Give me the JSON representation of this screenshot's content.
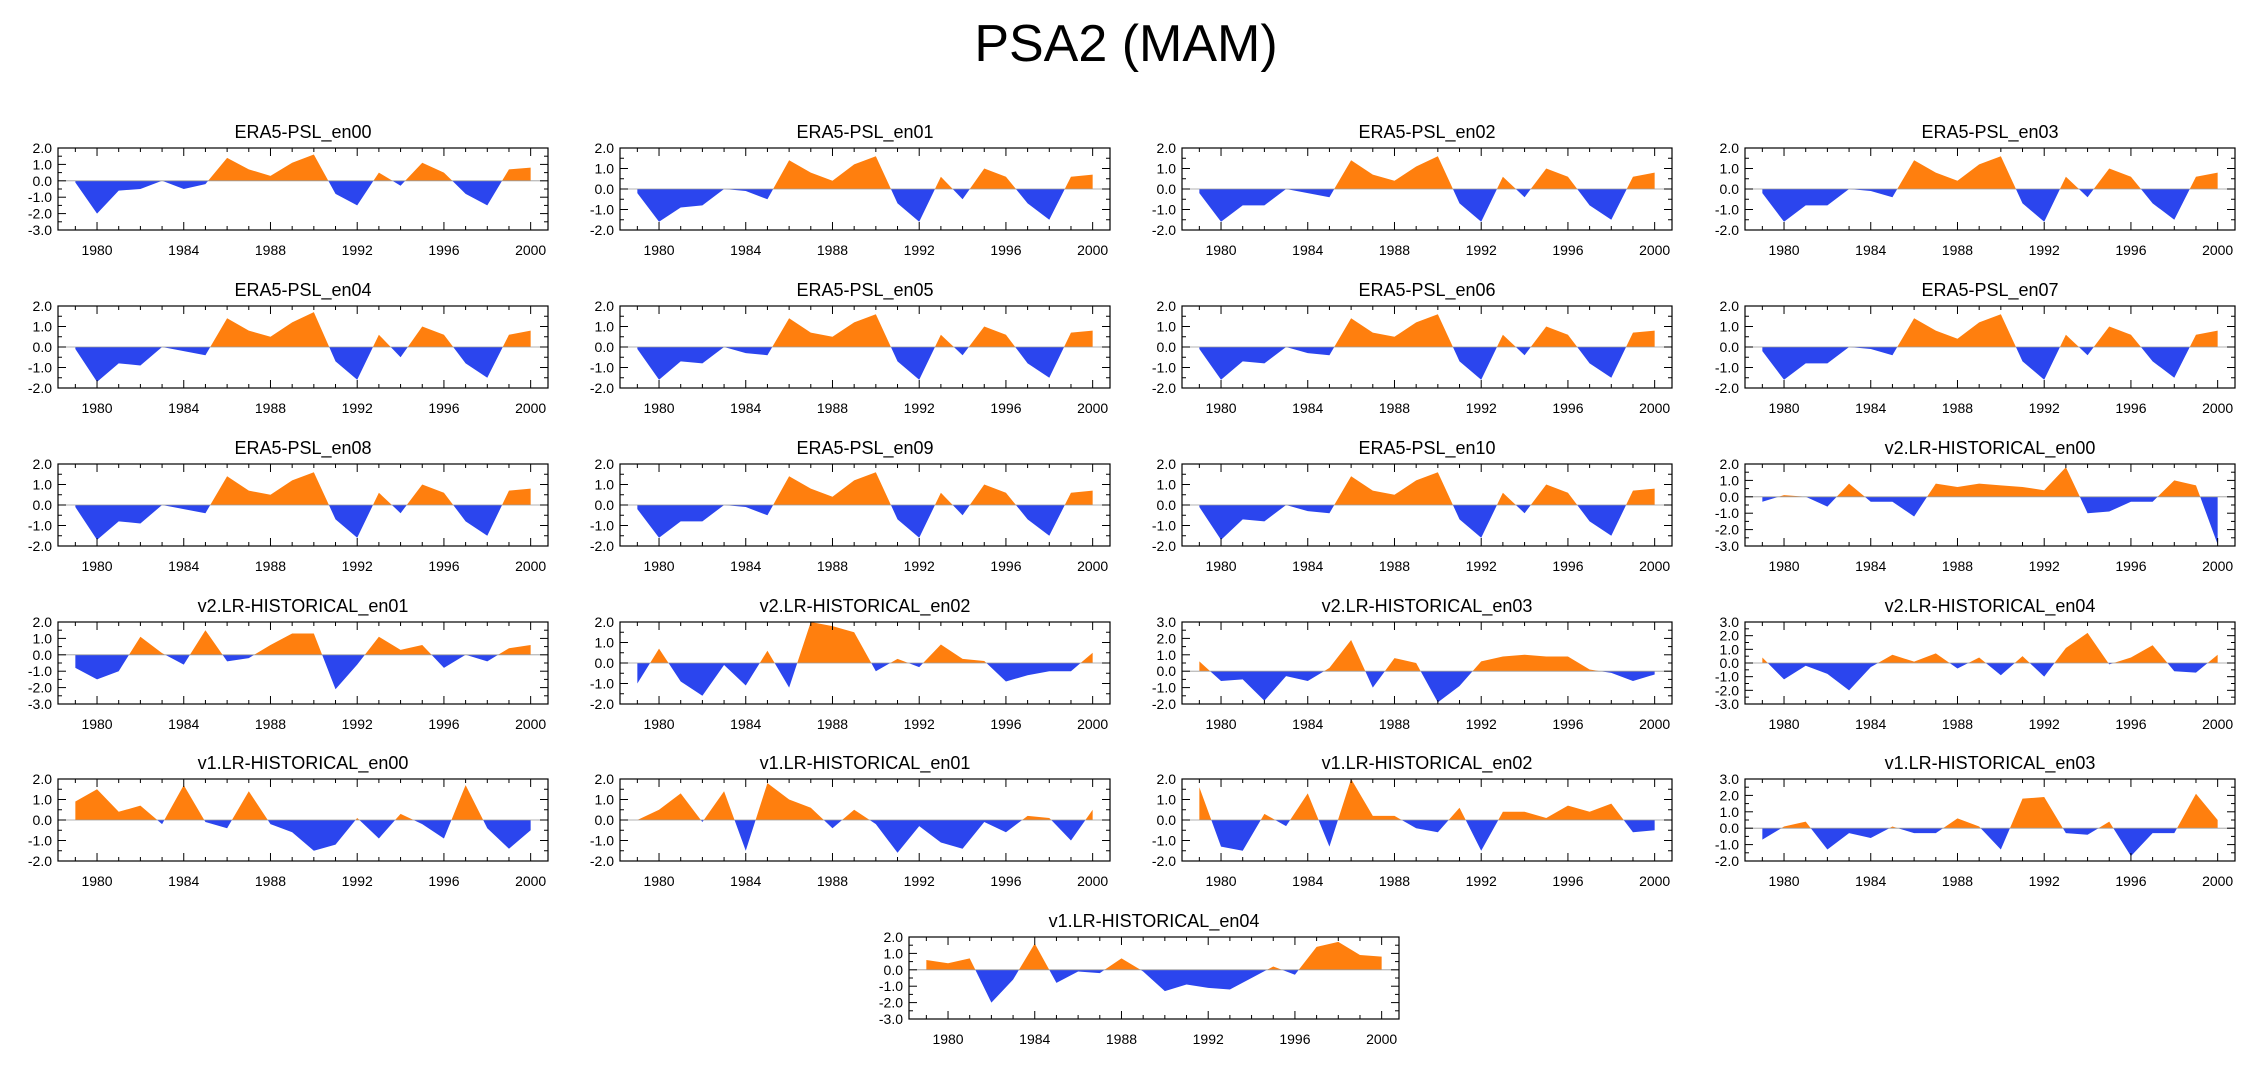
{
  "figure": {
    "title": "PSA2 (MAM)",
    "colors": {
      "positive": "#ff7f0e",
      "negative": "#2b45ee",
      "axis": "#000000"
    }
  },
  "chart_data": [
    {
      "type": "area",
      "title": "ERA5-PSL_en00",
      "x_start": 1979,
      "xlim": [
        1978.2,
        2000.8
      ],
      "xticks": [
        1980,
        1984,
        1988,
        1992,
        1996,
        2000
      ],
      "ylim": [
        -3,
        2
      ],
      "ytick_labels": [
        "2.0",
        "1.0",
        "0.0",
        "-1.0",
        "-2.0",
        "-3.0"
      ],
      "values": [
        -0.1,
        -2.0,
        -0.6,
        -0.5,
        0.0,
        -0.5,
        -0.2,
        1.4,
        0.7,
        0.3,
        1.1,
        1.6,
        -0.8,
        -1.5,
        0.5,
        -0.3,
        1.1,
        0.5,
        -0.8,
        -1.5,
        0.7,
        0.8
      ]
    },
    {
      "type": "area",
      "title": "ERA5-PSL_en01",
      "x_start": 1979,
      "xlim": [
        1978.2,
        2000.8
      ],
      "xticks": [
        1980,
        1984,
        1988,
        1992,
        1996,
        2000
      ],
      "ylim": [
        -2,
        2
      ],
      "ytick_labels": [
        "2.0",
        "1.0",
        "0.0",
        "-1.0",
        "-2.0"
      ],
      "values": [
        -0.2,
        -1.6,
        -0.9,
        -0.8,
        0.0,
        -0.1,
        -0.5,
        1.4,
        0.8,
        0.4,
        1.2,
        1.6,
        -0.7,
        -1.6,
        0.6,
        -0.5,
        1.0,
        0.6,
        -0.7,
        -1.5,
        0.6,
        0.7
      ]
    },
    {
      "type": "area",
      "title": "ERA5-PSL_en02",
      "x_start": 1979,
      "xlim": [
        1978.2,
        2000.8
      ],
      "xticks": [
        1980,
        1984,
        1988,
        1992,
        1996,
        2000
      ],
      "ylim": [
        -2,
        2
      ],
      "ytick_labels": [
        "2.0",
        "1.0",
        "0.0",
        "-1.0",
        "-2.0"
      ],
      "values": [
        -0.2,
        -1.6,
        -0.8,
        -0.8,
        0.0,
        -0.2,
        -0.4,
        1.4,
        0.7,
        0.4,
        1.1,
        1.6,
        -0.7,
        -1.6,
        0.6,
        -0.4,
        1.0,
        0.6,
        -0.8,
        -1.5,
        0.6,
        0.8
      ]
    },
    {
      "type": "area",
      "title": "ERA5-PSL_en03",
      "x_start": 1979,
      "xlim": [
        1978.2,
        2000.8
      ],
      "xticks": [
        1980,
        1984,
        1988,
        1992,
        1996,
        2000
      ],
      "ylim": [
        -2,
        2
      ],
      "ytick_labels": [
        "2.0",
        "1.0",
        "0.0",
        "-1.0",
        "-2.0"
      ],
      "values": [
        -0.2,
        -1.6,
        -0.8,
        -0.8,
        0.0,
        -0.1,
        -0.4,
        1.4,
        0.8,
        0.4,
        1.2,
        1.6,
        -0.7,
        -1.6,
        0.6,
        -0.4,
        1.0,
        0.6,
        -0.7,
        -1.5,
        0.6,
        0.8
      ]
    },
    {
      "type": "area",
      "title": "ERA5-PSL_en04",
      "x_start": 1979,
      "xlim": [
        1978.2,
        2000.8
      ],
      "xticks": [
        1980,
        1984,
        1988,
        1992,
        1996,
        2000
      ],
      "ylim": [
        -2,
        2
      ],
      "ytick_labels": [
        "2.0",
        "1.0",
        "0.0",
        "-1.0",
        "-2.0"
      ],
      "values": [
        -0.1,
        -1.7,
        -0.8,
        -0.9,
        0.0,
        -0.2,
        -0.4,
        1.4,
        0.8,
        0.5,
        1.2,
        1.7,
        -0.7,
        -1.6,
        0.6,
        -0.5,
        1.0,
        0.6,
        -0.8,
        -1.5,
        0.6,
        0.8
      ]
    },
    {
      "type": "area",
      "title": "ERA5-PSL_en05",
      "x_start": 1979,
      "xlim": [
        1978.2,
        2000.8
      ],
      "xticks": [
        1980,
        1984,
        1988,
        1992,
        1996,
        2000
      ],
      "ylim": [
        -2,
        2
      ],
      "ytick_labels": [
        "2.0",
        "1.0",
        "0.0",
        "-1.0",
        "-2.0"
      ],
      "values": [
        -0.1,
        -1.6,
        -0.7,
        -0.8,
        0.0,
        -0.3,
        -0.4,
        1.4,
        0.7,
        0.5,
        1.2,
        1.6,
        -0.7,
        -1.6,
        0.6,
        -0.4,
        1.0,
        0.6,
        -0.8,
        -1.5,
        0.7,
        0.8
      ]
    },
    {
      "type": "area",
      "title": "ERA5-PSL_en06",
      "x_start": 1979,
      "xlim": [
        1978.2,
        2000.8
      ],
      "xticks": [
        1980,
        1984,
        1988,
        1992,
        1996,
        2000
      ],
      "ylim": [
        -2,
        2
      ],
      "ytick_labels": [
        "2.0",
        "1.0",
        "0.0",
        "-1.0",
        "-2.0"
      ],
      "values": [
        -0.1,
        -1.6,
        -0.7,
        -0.8,
        0.0,
        -0.3,
        -0.4,
        1.4,
        0.7,
        0.5,
        1.2,
        1.6,
        -0.7,
        -1.6,
        0.6,
        -0.4,
        1.0,
        0.6,
        -0.8,
        -1.5,
        0.7,
        0.8
      ]
    },
    {
      "type": "area",
      "title": "ERA5-PSL_en07",
      "x_start": 1979,
      "xlim": [
        1978.2,
        2000.8
      ],
      "xticks": [
        1980,
        1984,
        1988,
        1992,
        1996,
        2000
      ],
      "ylim": [
        -2,
        2
      ],
      "ytick_labels": [
        "2.0",
        "1.0",
        "0.0",
        "-1.0",
        "-2.0"
      ],
      "values": [
        -0.2,
        -1.6,
        -0.8,
        -0.8,
        0.0,
        -0.1,
        -0.4,
        1.4,
        0.8,
        0.4,
        1.2,
        1.6,
        -0.7,
        -1.6,
        0.6,
        -0.4,
        1.0,
        0.6,
        -0.7,
        -1.5,
        0.6,
        0.8
      ]
    },
    {
      "type": "area",
      "title": "ERA5-PSL_en08",
      "x_start": 1979,
      "xlim": [
        1978.2,
        2000.8
      ],
      "xticks": [
        1980,
        1984,
        1988,
        1992,
        1996,
        2000
      ],
      "ylim": [
        -2,
        2
      ],
      "ytick_labels": [
        "2.0",
        "1.0",
        "0.0",
        "-1.0",
        "-2.0"
      ],
      "values": [
        -0.1,
        -1.7,
        -0.8,
        -0.9,
        0.0,
        -0.2,
        -0.4,
        1.4,
        0.7,
        0.5,
        1.2,
        1.6,
        -0.7,
        -1.6,
        0.6,
        -0.4,
        1.0,
        0.6,
        -0.8,
        -1.5,
        0.7,
        0.8
      ]
    },
    {
      "type": "area",
      "title": "ERA5-PSL_en09",
      "x_start": 1979,
      "xlim": [
        1978.2,
        2000.8
      ],
      "xticks": [
        1980,
        1984,
        1988,
        1992,
        1996,
        2000
      ],
      "ylim": [
        -2,
        2
      ],
      "ytick_labels": [
        "2.0",
        "1.0",
        "0.0",
        "-1.0",
        "-2.0"
      ],
      "values": [
        -0.2,
        -1.6,
        -0.8,
        -0.8,
        0.0,
        -0.1,
        -0.5,
        1.4,
        0.8,
        0.4,
        1.2,
        1.6,
        -0.7,
        -1.6,
        0.6,
        -0.5,
        1.0,
        0.6,
        -0.7,
        -1.5,
        0.6,
        0.7
      ]
    },
    {
      "type": "area",
      "title": "ERA5-PSL_en10",
      "x_start": 1979,
      "xlim": [
        1978.2,
        2000.8
      ],
      "xticks": [
        1980,
        1984,
        1988,
        1992,
        1996,
        2000
      ],
      "ylim": [
        -2,
        2
      ],
      "ytick_labels": [
        "2.0",
        "1.0",
        "0.0",
        "-1.0",
        "-2.0"
      ],
      "values": [
        -0.1,
        -1.7,
        -0.7,
        -0.8,
        0.0,
        -0.3,
        -0.4,
        1.4,
        0.7,
        0.5,
        1.2,
        1.6,
        -0.7,
        -1.6,
        0.6,
        -0.4,
        1.0,
        0.6,
        -0.8,
        -1.5,
        0.7,
        0.8
      ]
    },
    {
      "type": "area",
      "title": "v2.LR-HISTORICAL_en00",
      "x_start": 1979,
      "xlim": [
        1978.2,
        2000.8
      ],
      "xticks": [
        1980,
        1984,
        1988,
        1992,
        1996,
        2000
      ],
      "ylim": [
        -3,
        2
      ],
      "ytick_labels": [
        "2.0",
        "1.0",
        "0.0",
        "-1.0",
        "-2.0",
        "-3.0"
      ],
      "values": [
        -0.3,
        0.1,
        0.0,
        -0.6,
        0.8,
        -0.3,
        -0.3,
        -1.2,
        0.8,
        0.6,
        0.8,
        0.7,
        0.6,
        0.4,
        1.8,
        -1.0,
        -0.9,
        -0.3,
        -0.3,
        1.0,
        0.7,
        -2.9
      ]
    },
    {
      "type": "area",
      "title": "v2.LR-HISTORICAL_en01",
      "x_start": 1979,
      "xlim": [
        1978.2,
        2000.8
      ],
      "xticks": [
        1980,
        1984,
        1988,
        1992,
        1996,
        2000
      ],
      "ylim": [
        -3,
        2
      ],
      "ytick_labels": [
        "2.0",
        "1.0",
        "0.0",
        "-1.0",
        "-2.0",
        "-3.0"
      ],
      "values": [
        -0.8,
        -1.5,
        -1.0,
        1.1,
        0.1,
        -0.6,
        1.5,
        -0.4,
        -0.2,
        0.6,
        1.3,
        1.3,
        -2.1,
        -0.6,
        1.1,
        0.3,
        0.6,
        -0.8,
        0.0,
        -0.4,
        0.4,
        0.6
      ]
    },
    {
      "type": "area",
      "title": "v2.LR-HISTORICAL_en02",
      "x_start": 1979,
      "xlim": [
        1978.2,
        2000.8
      ],
      "xticks": [
        1980,
        1984,
        1988,
        1992,
        1996,
        2000
      ],
      "ylim": [
        -2,
        2
      ],
      "ytick_labels": [
        "2.0",
        "1.0",
        "0.0",
        "-1.0",
        "-2.0"
      ],
      "values": [
        -1.0,
        0.7,
        -0.9,
        -1.6,
        -0.1,
        -1.1,
        0.6,
        -1.2,
        2.0,
        1.8,
        1.5,
        -0.4,
        0.2,
        -0.2,
        0.9,
        0.2,
        0.1,
        -0.9,
        -0.6,
        -0.4,
        -0.4,
        0.5
      ]
    },
    {
      "type": "area",
      "title": "v2.LR-HISTORICAL_en03",
      "x_start": 1979,
      "xlim": [
        1978.2,
        2000.8
      ],
      "xticks": [
        1980,
        1984,
        1988,
        1992,
        1996,
        2000
      ],
      "ylim": [
        -2,
        3
      ],
      "ytick_labels": [
        "3.0",
        "2.0",
        "1.0",
        "0.0",
        "-1.0",
        "-2.0"
      ],
      "values": [
        0.6,
        -0.6,
        -0.5,
        -1.8,
        -0.3,
        -0.6,
        0.2,
        1.9,
        -1.0,
        0.8,
        0.5,
        -1.9,
        -0.9,
        0.6,
        0.9,
        1.0,
        0.9,
        0.9,
        0.1,
        -0.1,
        -0.6,
        -0.2
      ]
    },
    {
      "type": "area",
      "title": "v2.LR-HISTORICAL_en04",
      "x_start": 1979,
      "xlim": [
        1978.2,
        2000.8
      ],
      "xticks": [
        1980,
        1984,
        1988,
        1992,
        1996,
        2000
      ],
      "ylim": [
        -3,
        3
      ],
      "ytick_labels": [
        "3.0",
        "2.0",
        "1.0",
        "0.0",
        "-1.0",
        "-2.0",
        "-3.0"
      ],
      "values": [
        0.4,
        -1.2,
        -0.2,
        -0.8,
        -2.0,
        -0.3,
        0.6,
        0.1,
        0.7,
        -0.4,
        0.4,
        -0.9,
        0.5,
        -1.0,
        1.1,
        2.2,
        -0.1,
        0.4,
        1.3,
        -0.6,
        -0.7,
        0.6
      ]
    },
    {
      "type": "area",
      "title": "v1.LR-HISTORICAL_en00",
      "x_start": 1979,
      "xlim": [
        1978.2,
        2000.8
      ],
      "xticks": [
        1980,
        1984,
        1988,
        1992,
        1996,
        2000
      ],
      "ylim": [
        -2,
        2
      ],
      "ytick_labels": [
        "2.0",
        "1.0",
        "0.0",
        "-1.0",
        "-2.0"
      ],
      "values": [
        0.9,
        1.5,
        0.4,
        0.7,
        -0.2,
        1.7,
        -0.1,
        -0.4,
        1.4,
        -0.2,
        -0.6,
        -1.5,
        -1.2,
        0.1,
        -0.9,
        0.3,
        -0.2,
        -0.9,
        1.7,
        -0.4,
        -1.4,
        -0.5
      ]
    },
    {
      "type": "area",
      "title": "v1.LR-HISTORICAL_en01",
      "x_start": 1979,
      "xlim": [
        1978.2,
        2000.8
      ],
      "xticks": [
        1980,
        1984,
        1988,
        1992,
        1996,
        2000
      ],
      "ylim": [
        -2,
        2
      ],
      "ytick_labels": [
        "2.0",
        "1.0",
        "0.0",
        "-1.0",
        "-2.0"
      ],
      "values": [
        0.0,
        0.5,
        1.3,
        -0.1,
        1.4,
        -1.5,
        1.8,
        1.0,
        0.6,
        -0.4,
        0.5,
        -0.2,
        -1.6,
        -0.3,
        -1.1,
        -1.4,
        -0.1,
        -0.6,
        0.2,
        0.1,
        -1.0,
        0.5
      ]
    },
    {
      "type": "area",
      "title": "v1.LR-HISTORICAL_en02",
      "x_start": 1979,
      "xlim": [
        1978.2,
        2000.8
      ],
      "xticks": [
        1980,
        1984,
        1988,
        1992,
        1996,
        2000
      ],
      "ylim": [
        -2,
        2
      ],
      "ytick_labels": [
        "2.0",
        "1.0",
        "0.0",
        "-1.0",
        "-2.0"
      ],
      "values": [
        1.6,
        -1.3,
        -1.5,
        0.3,
        -0.3,
        1.3,
        -1.3,
        2.0,
        0.2,
        0.2,
        -0.4,
        -0.6,
        0.6,
        -1.5,
        0.4,
        0.4,
        0.1,
        0.7,
        0.4,
        0.8,
        -0.6,
        -0.5
      ]
    },
    {
      "type": "area",
      "title": "v1.LR-HISTORICAL_en03",
      "x_start": 1979,
      "xlim": [
        1978.2,
        2000.8
      ],
      "xticks": [
        1980,
        1984,
        1988,
        1992,
        1996,
        2000
      ],
      "ylim": [
        -2,
        3
      ],
      "ytick_labels": [
        "3.0",
        "2.0",
        "1.0",
        "0.0",
        "-1.0",
        "-2.0"
      ],
      "values": [
        -0.7,
        0.1,
        0.4,
        -1.3,
        -0.3,
        -0.6,
        0.1,
        -0.3,
        -0.3,
        0.6,
        0.1,
        -1.3,
        1.8,
        1.9,
        -0.3,
        -0.4,
        0.4,
        -1.7,
        -0.3,
        -0.3,
        2.1,
        0.5
      ]
    },
    {
      "type": "area",
      "title": "v1.LR-HISTORICAL_en04",
      "x_start": 1979,
      "xlim": [
        1978.2,
        2000.8
      ],
      "xticks": [
        1980,
        1984,
        1988,
        1992,
        1996,
        2000
      ],
      "ylim": [
        -3,
        2
      ],
      "ytick_labels": [
        "2.0",
        "1.0",
        "0.0",
        "-1.0",
        "-2.0",
        "-3.0"
      ],
      "values": [
        0.6,
        0.4,
        0.7,
        -2.0,
        -0.6,
        1.6,
        -0.8,
        -0.1,
        -0.2,
        0.7,
        -0.1,
        -1.3,
        -0.9,
        -1.1,
        -1.2,
        -0.5,
        0.2,
        -0.3,
        1.4,
        1.7,
        0.9,
        0.8
      ]
    }
  ]
}
